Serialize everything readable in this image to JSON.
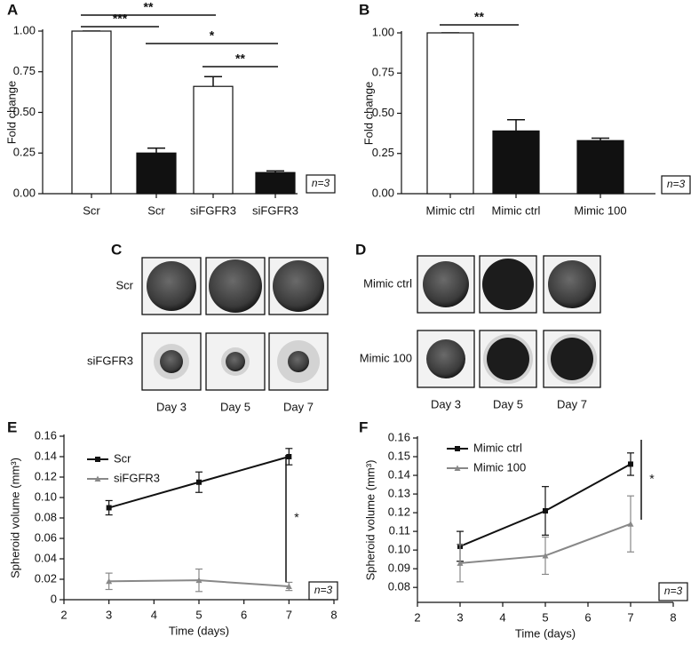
{
  "chart_data": [
    {
      "type": "bar",
      "label": "A",
      "ylabel": "Fold change",
      "categories": [
        "Scr",
        "Scr",
        "siFGFR3",
        "siFGFR3"
      ],
      "values": [
        1.0,
        0.25,
        0.66,
        0.13
      ],
      "errors": [
        0,
        0.03,
        0.06,
        0.01
      ],
      "colors": [
        "#ffffff",
        "#111111",
        "#ffffff",
        "#111111"
      ],
      "ylim": [
        0,
        1.0
      ],
      "yticks": [
        {
          "value": 0,
          "label": "0.00"
        },
        {
          "value": 0.25,
          "label": "0.25"
        },
        {
          "value": 0.5,
          "label": "0.50"
        },
        {
          "value": 0.75,
          "label": "0.75"
        },
        {
          "value": 1.0,
          "label": "1.00"
        }
      ],
      "annotations": [
        {
          "text": "***",
          "between": [
            0,
            1
          ]
        },
        {
          "text": "**",
          "between": [
            0,
            2
          ]
        },
        {
          "text": "*",
          "between": [
            1,
            3
          ]
        },
        {
          "text": "**",
          "between": [
            2,
            3
          ]
        }
      ],
      "note": "n=3"
    },
    {
      "type": "bar",
      "label": "B",
      "ylabel": "Fold change",
      "categories": [
        "Mimic ctrl",
        "Mimic ctrl",
        "Mimic 100"
      ],
      "values": [
        1.0,
        0.39,
        0.33
      ],
      "errors": [
        0,
        0.07,
        0.015
      ],
      "colors": [
        "#ffffff",
        "#111111",
        "#111111"
      ],
      "ylim": [
        0,
        1.0
      ],
      "yticks": [
        {
          "value": 0,
          "label": "0.00"
        },
        {
          "value": 0.25,
          "label": "0.25"
        },
        {
          "value": 0.5,
          "label": "0.50"
        },
        {
          "value": 0.75,
          "label": "0.75"
        },
        {
          "value": 1.0,
          "label": "1.00"
        }
      ],
      "annotations": [
        {
          "text": "**",
          "between": [
            0,
            1
          ]
        }
      ],
      "note": "n=3"
    },
    {
      "type": "line",
      "label": "E",
      "xlabel": "Time (days)",
      "ylabel": "Spheroid volume (mm³)",
      "x": [
        3,
        5,
        7
      ],
      "series": [
        {
          "name": "Scr",
          "color": "#111111",
          "marker": "square",
          "values": [
            0.09,
            0.115,
            0.14
          ],
          "errors": [
            0.007,
            0.01,
            0.008
          ]
        },
        {
          "name": "siFGFR3",
          "color": "#888888",
          "marker": "triangle",
          "values": [
            0.018,
            0.019,
            0.013
          ],
          "errors": [
            0.008,
            0.011,
            0.004
          ]
        }
      ],
      "xlim": [
        2,
        8
      ],
      "xticks": [
        2,
        3,
        4,
        5,
        6,
        7,
        8
      ],
      "ylim": [
        0,
        0.16
      ],
      "yticks": [
        0,
        0.02,
        0.04,
        0.06,
        0.08,
        {
          "value": 0.1,
          "label": "0.10"
        },
        0.12,
        0.14,
        0.16
      ],
      "significance": "*",
      "note": "n=3"
    },
    {
      "type": "line",
      "label": "F",
      "xlabel": "Time (days)",
      "ylabel": "Spheroid volume (mm³)",
      "x": [
        3,
        5,
        7
      ],
      "series": [
        {
          "name": "Mimic ctrl",
          "color": "#111111",
          "marker": "square",
          "values": [
            0.102,
            0.121,
            0.146
          ],
          "errors": [
            0.008,
            0.013,
            0.006
          ]
        },
        {
          "name": "Mimic 100",
          "color": "#888888",
          "marker": "triangle",
          "values": [
            0.093,
            0.097,
            0.114
          ],
          "errors": [
            0.01,
            0.01,
            0.015
          ]
        }
      ],
      "xlim": [
        2,
        8
      ],
      "xticks": [
        2,
        3,
        4,
        5,
        6,
        7,
        8
      ],
      "ylim": [
        0.072,
        0.16
      ],
      "yticks": [
        0.08,
        0.09,
        {
          "value": 0.1,
          "label": "0.10"
        },
        0.11,
        0.12,
        0.13,
        0.14,
        0.15,
        0.16
      ],
      "significance": "*",
      "note": "n=3"
    }
  ],
  "image_panels": [
    {
      "label": "C",
      "rows": [
        "Scr",
        "siFGFR3"
      ],
      "columns": [
        "Day 3",
        "Day 5",
        "Day 7"
      ]
    },
    {
      "label": "D",
      "rows": [
        "Mimic ctrl",
        "Mimic 100"
      ],
      "columns": [
        "Day 3",
        "Day 5",
        "Day 7"
      ]
    }
  ]
}
